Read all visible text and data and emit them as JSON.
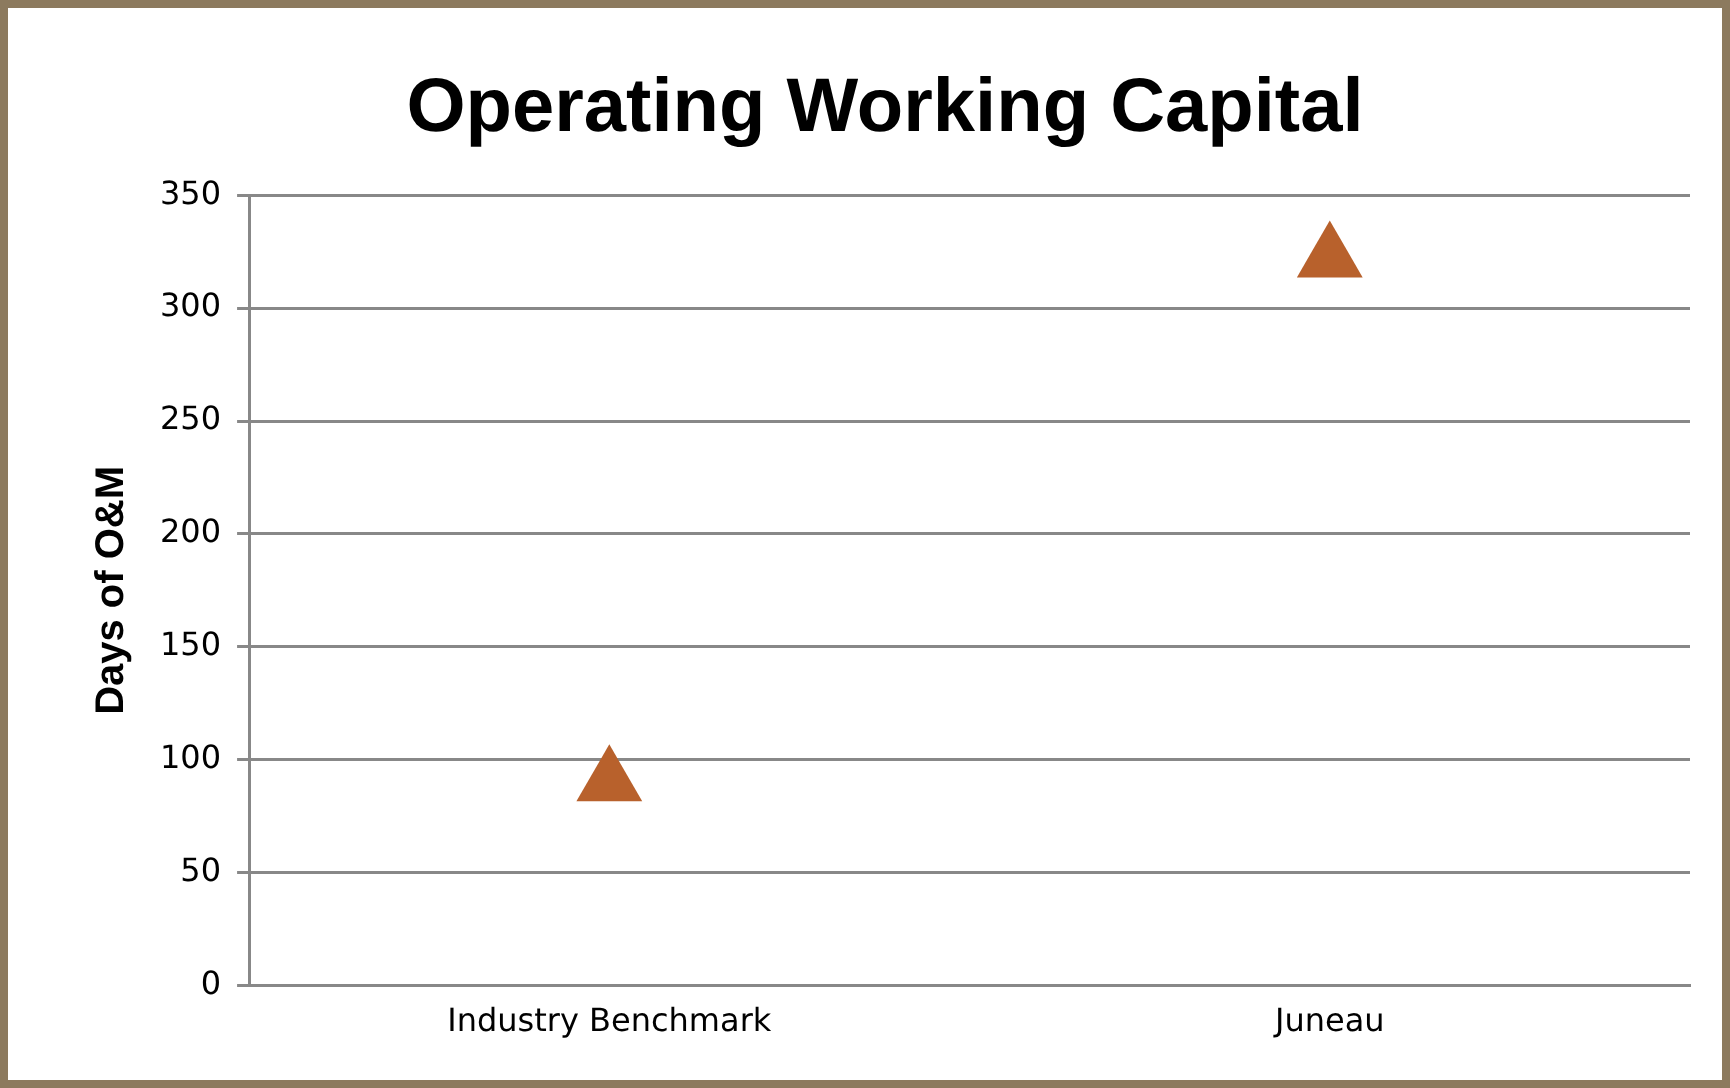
{
  "chart_data": {
    "type": "scatter",
    "title": "Operating Working Capital",
    "ylabel": "Days of O&M",
    "categories": [
      "Industry Benchmark",
      "Juneau"
    ],
    "series": [
      {
        "color": "#b8612c",
        "values": [
          90,
          322
        ]
      }
    ],
    "ylim": [
      0,
      350
    ],
    "yticks": [
      0,
      50,
      100,
      150,
      200,
      250,
      300,
      350
    ],
    "grid": "y",
    "legend": false,
    "marker": "triangle"
  }
}
